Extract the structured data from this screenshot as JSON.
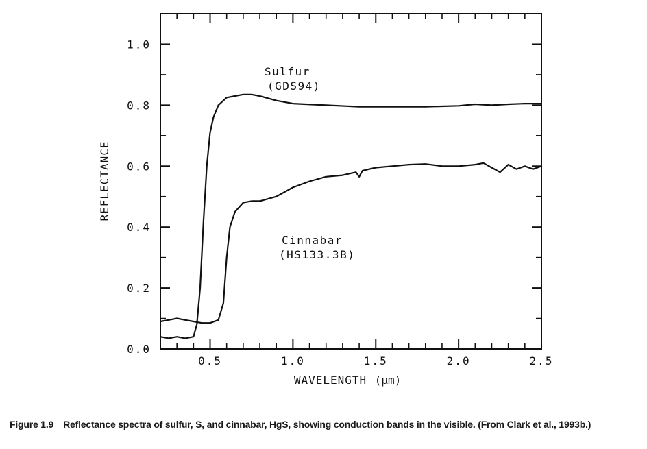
{
  "chart_data": {
    "type": "line",
    "xlabel": "WAVELENGTH",
    "xlabel_unit": "(μm)",
    "ylabel": "REFLECTANCE",
    "xlim": [
      0.2,
      2.5
    ],
    "ylim": [
      0.0,
      1.1
    ],
    "x_ticks": [
      0.5,
      1.0,
      1.5,
      2.0,
      2.5
    ],
    "x_tick_labels": [
      "0.5",
      "1.0",
      "1.5",
      "2.0",
      "2.5"
    ],
    "y_ticks": [
      0.0,
      0.2,
      0.4,
      0.6,
      0.8,
      1.0
    ],
    "y_tick_labels": [
      "0.0",
      "0.2",
      "0.4",
      "0.6",
      "0.8",
      "1.0"
    ],
    "grid": false,
    "legend": "none",
    "annotations": [
      {
        "series": "sulfur",
        "lines": [
          "Sulfur",
          "(GDS94)"
        ]
      },
      {
        "series": "cinnabar",
        "lines": [
          "Cinnabar",
          "(HS133.3B)"
        ]
      }
    ],
    "series": [
      {
        "id": "sulfur",
        "x": [
          0.2,
          0.25,
          0.3,
          0.35,
          0.4,
          0.42,
          0.44,
          0.46,
          0.48,
          0.5,
          0.52,
          0.55,
          0.6,
          0.65,
          0.7,
          0.75,
          0.8,
          0.9,
          1.0,
          1.2,
          1.4,
          1.6,
          1.8,
          2.0,
          2.1,
          2.2,
          2.3,
          2.4,
          2.5
        ],
        "y": [
          0.04,
          0.035,
          0.04,
          0.035,
          0.04,
          0.08,
          0.2,
          0.42,
          0.6,
          0.71,
          0.76,
          0.8,
          0.825,
          0.83,
          0.835,
          0.835,
          0.83,
          0.815,
          0.805,
          0.8,
          0.795,
          0.795,
          0.795,
          0.798,
          0.803,
          0.8,
          0.803,
          0.805,
          0.805
        ]
      },
      {
        "id": "cinnabar",
        "x": [
          0.2,
          0.25,
          0.3,
          0.35,
          0.4,
          0.45,
          0.5,
          0.55,
          0.58,
          0.6,
          0.62,
          0.65,
          0.7,
          0.75,
          0.8,
          0.9,
          1.0,
          1.1,
          1.2,
          1.3,
          1.38,
          1.4,
          1.42,
          1.5,
          1.6,
          1.7,
          1.8,
          1.9,
          2.0,
          2.1,
          2.15,
          2.2,
          2.25,
          2.3,
          2.35,
          2.4,
          2.45,
          2.5
        ],
        "y": [
          0.09,
          0.095,
          0.1,
          0.095,
          0.09,
          0.085,
          0.085,
          0.095,
          0.15,
          0.3,
          0.4,
          0.45,
          0.48,
          0.485,
          0.485,
          0.5,
          0.53,
          0.55,
          0.565,
          0.57,
          0.58,
          0.565,
          0.585,
          0.595,
          0.6,
          0.605,
          0.607,
          0.6,
          0.6,
          0.605,
          0.61,
          0.595,
          0.58,
          0.605,
          0.59,
          0.6,
          0.59,
          0.6
        ]
      }
    ]
  },
  "caption": {
    "figure_label": "Figure 1.9",
    "text": "Reflectance spectra of sulfur, S, and cinnabar, HgS, showing conduction bands in the visible. (From Clark et al., 1993b.)"
  }
}
